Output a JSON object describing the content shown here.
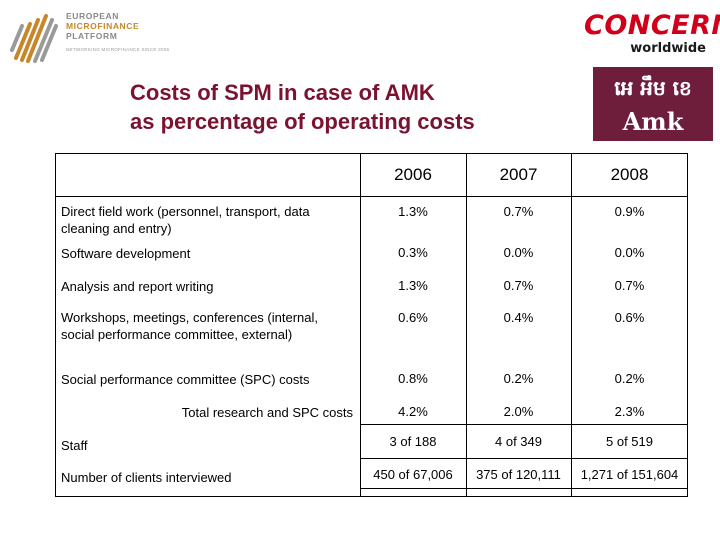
{
  "logos": {
    "emf": {
      "line1": "EUROPEAN",
      "line2": "MICROFINANCE",
      "line3": "PLATFORM",
      "tagline": "NETWORKING MICROFINANCE SINCE 2006"
    },
    "concern": {
      "main": "CONCERN",
      "sub": "worldwide"
    },
    "amk": {
      "khmer": "អេ អឹម ខេ",
      "latin": "Amk"
    },
    "colors": {
      "emf_gray": "#8a8a8a",
      "emf_orange": "#c8862a",
      "concern_red": "#d0001a",
      "amk_maroon": "#6e1d3a"
    }
  },
  "title": {
    "line1": "Costs of SPM in case of AMK",
    "line2": "as percentage of operating costs",
    "color": "#7a1230"
  },
  "table": {
    "columns": [
      "2006",
      "2007",
      "2008"
    ],
    "rows": [
      {
        "label": "Direct field work (personnel, transport, data cleaning and entry)",
        "values": [
          "1.3%",
          "0.7%",
          "0.9%"
        ]
      },
      {
        "label": "Software development",
        "values": [
          "0.3%",
          "0.0%",
          "0.0%"
        ]
      },
      {
        "label": "Analysis and report writing",
        "values": [
          "1.3%",
          "0.7%",
          "0.7%"
        ]
      },
      {
        "label": "Workshops, meetings, conferences (internal, social performance committee, external)",
        "values": [
          "0.6%",
          "0.4%",
          "0.6%"
        ]
      },
      {
        "label": "Social performance committee (SPC) costs",
        "values": [
          "0.8%",
          "0.2%",
          "0.2%"
        ]
      },
      {
        "label": "Total research and SPC costs",
        "values": [
          "4.2%",
          "2.0%",
          "2.3%"
        ]
      },
      {
        "label": "Staff",
        "values": [
          "3 of 188",
          "4 of 349",
          "5 of 519"
        ]
      },
      {
        "label": "Number of clients interviewed",
        "values": [
          "450 of 67,006",
          "375 of 120,111",
          "1,271 of 151,604"
        ]
      }
    ]
  }
}
